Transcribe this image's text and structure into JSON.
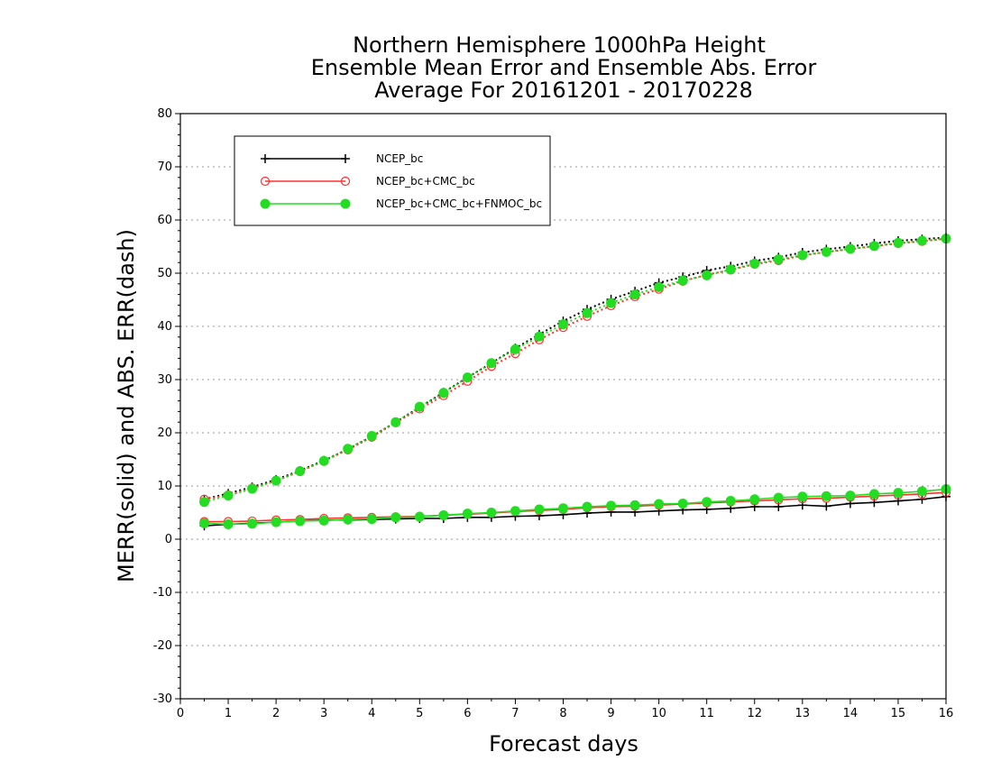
{
  "chart_data": {
    "type": "line",
    "title_lines": [
      "Northern Hemisphere 1000hPa Height",
      "Ensemble Mean Error and Ensemble Abs. Error",
      "Average For 20161201 - 20170228"
    ],
    "xlabel": "Forecast days",
    "ylabel": "MERR(solid) and ABS. ERR(dash)",
    "xlim": [
      0,
      16
    ],
    "ylim": [
      -30,
      80
    ],
    "xticks": [
      0,
      1,
      2,
      3,
      4,
      5,
      6,
      7,
      8,
      9,
      10,
      11,
      12,
      13,
      14,
      15,
      16
    ],
    "yticks": [
      -30,
      -20,
      -10,
      0,
      10,
      20,
      30,
      40,
      50,
      60,
      70,
      80
    ],
    "grid": "dotted horizontal",
    "legend_position": "top-left",
    "x": [
      0.5,
      1,
      1.5,
      2,
      2.5,
      3,
      3.5,
      4,
      4.5,
      5,
      5.5,
      6,
      6.5,
      7,
      7.5,
      8,
      8.5,
      9,
      9.5,
      10,
      10.5,
      11,
      11.5,
      12,
      12.5,
      13,
      13.5,
      14,
      14.5,
      15,
      15.5,
      16
    ],
    "series": [
      {
        "name": "NCEP_bc",
        "color": "#000000",
        "marker": "plus",
        "merr": [
          2.5,
          2.8,
          3.0,
          3.2,
          3.4,
          3.6,
          3.6,
          3.7,
          3.8,
          3.9,
          3.9,
          4.1,
          4.1,
          4.3,
          4.4,
          4.6,
          4.9,
          5.1,
          5.1,
          5.3,
          5.5,
          5.6,
          5.8,
          6.1,
          6.1,
          6.4,
          6.2,
          6.7,
          6.9,
          7.2,
          7.5,
          8.0
        ],
        "abs_err": [
          7.5,
          8.6,
          9.8,
          11.2,
          12.9,
          14.8,
          16.9,
          19.3,
          22.0,
          24.8,
          27.6,
          30.4,
          33.1,
          35.9,
          38.5,
          41.0,
          43.2,
          45.1,
          46.6,
          48.2,
          49.3,
          50.5,
          51.3,
          52.3,
          53.0,
          53.9,
          54.5,
          55.0,
          55.6,
          56.1,
          56.4,
          56.7
        ]
      },
      {
        "name": "NCEP_bc+CMC_bc",
        "color": "#ff3030",
        "marker": "open-circle",
        "merr": [
          3.3,
          3.3,
          3.4,
          3.6,
          3.7,
          3.9,
          4.0,
          4.1,
          4.2,
          4.3,
          4.5,
          4.7,
          4.9,
          5.2,
          5.4,
          5.6,
          5.9,
          6.1,
          6.2,
          6.4,
          6.6,
          6.8,
          7.0,
          7.2,
          7.4,
          7.6,
          7.7,
          7.9,
          8.1,
          8.3,
          8.5,
          8.8
        ],
        "abs_err": [
          7.5,
          8.3,
          9.6,
          11.0,
          12.7,
          14.7,
          16.8,
          19.2,
          21.9,
          24.5,
          27.0,
          29.7,
          32.5,
          34.9,
          37.5,
          39.8,
          41.9,
          43.9,
          45.6,
          47.0,
          48.5,
          49.7,
          50.6,
          51.7,
          52.4,
          53.3,
          54.0,
          54.5,
          55.1,
          55.6,
          56.0,
          56.5
        ]
      },
      {
        "name": "NCEP_bc+CMC_bc+FNMOC_bc",
        "color": "#22dd22",
        "marker": "filled-circle",
        "merr": [
          3.0,
          2.8,
          2.9,
          3.2,
          3.4,
          3.5,
          3.7,
          3.8,
          4.1,
          4.2,
          4.5,
          4.8,
          5.0,
          5.3,
          5.6,
          5.8,
          6.1,
          6.3,
          6.4,
          6.6,
          6.7,
          7.0,
          7.2,
          7.5,
          7.8,
          8.0,
          8.1,
          8.2,
          8.5,
          8.7,
          9.0,
          9.4
        ],
        "abs_err": [
          7.0,
          8.2,
          9.5,
          11.0,
          12.8,
          14.7,
          17.0,
          19.4,
          22.0,
          24.9,
          27.5,
          30.4,
          33.1,
          35.7,
          38.1,
          40.4,
          42.5,
          44.4,
          46.0,
          47.4,
          48.6,
          49.6,
          50.7,
          51.8,
          52.6,
          53.4,
          54.0,
          54.6,
          55.1,
          55.7,
          56.1,
          56.5
        ]
      }
    ]
  }
}
